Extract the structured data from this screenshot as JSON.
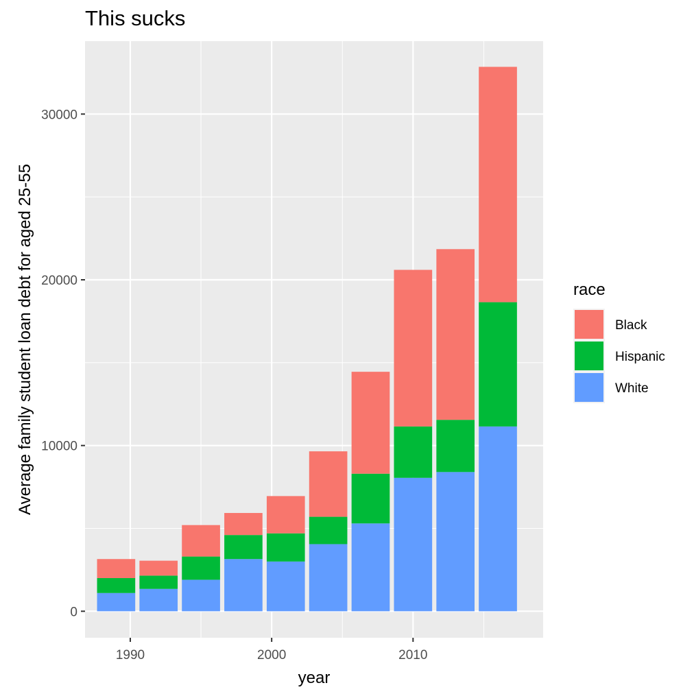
{
  "chart_data": {
    "type": "bar",
    "stacked": true,
    "title": "This sucks",
    "xlabel": "year",
    "ylabel": "Average family student loan debt for aged 25-55",
    "x": [
      1989,
      1992,
      1995,
      1998,
      2001,
      2004,
      2007,
      2010,
      2013,
      2016
    ],
    "x_ticks": [
      1990,
      2000,
      2010
    ],
    "xlim": [
      1986.8,
      2019.2
    ],
    "y_ticks": [
      0,
      10000,
      20000,
      30000
    ],
    "ylim": [
      -1600,
      34400
    ],
    "grid": true,
    "legend_position": "right",
    "legend_title": "race",
    "series": [
      {
        "name": "Black",
        "color": "#F8766D",
        "values": [
          1150,
          900,
          1900,
          1330,
          2250,
          3950,
          6150,
          9450,
          10300,
          14200
        ]
      },
      {
        "name": "Hispanic",
        "color": "#00BA38",
        "values": [
          900,
          800,
          1400,
          1450,
          1700,
          1650,
          3000,
          3100,
          3150,
          7500
        ]
      },
      {
        "name": "White",
        "color": "#619CFF",
        "values": [
          1100,
          1350,
          1900,
          3150,
          3000,
          4050,
          5300,
          8050,
          8400,
          11150
        ]
      }
    ]
  }
}
